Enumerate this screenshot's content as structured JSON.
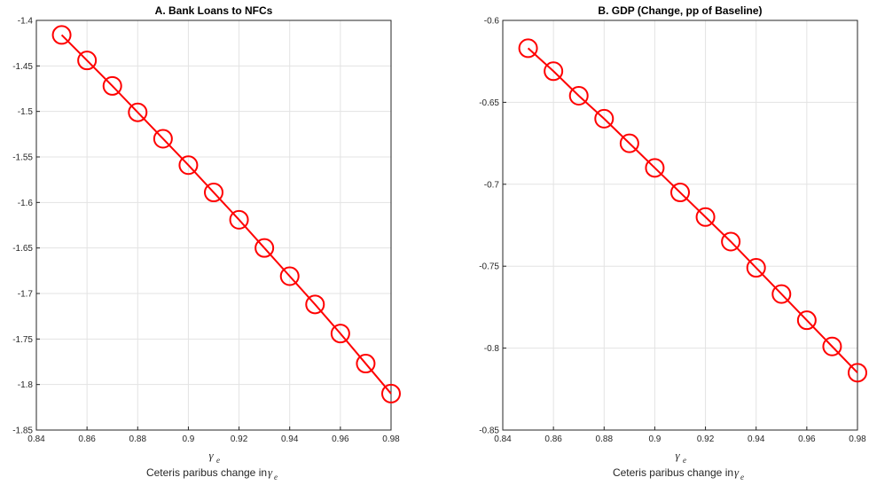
{
  "chart_data": [
    {
      "type": "line",
      "title": "A. Bank Loans to NFCs",
      "xlabel": "γe",
      "xlabel_parts": {
        "symbol": "γ",
        "sub": "e"
      },
      "caption": "Ceteris paribus change in γe",
      "caption_parts": {
        "text": "Ceteris paribus change in ",
        "symbol": "γ",
        "sub": "e"
      },
      "xlim": [
        0.84,
        0.98
      ],
      "ylim": [
        -1.85,
        -1.4
      ],
      "xticks": [
        0.84,
        0.86,
        0.88,
        0.9,
        0.92,
        0.94,
        0.96,
        0.98
      ],
      "xtick_labels": [
        "0.84",
        "0.86",
        "0.88",
        "0.9",
        "0.92",
        "0.94",
        "0.96",
        "0.98"
      ],
      "yticks": [
        -1.4,
        -1.45,
        -1.5,
        -1.55,
        -1.6,
        -1.65,
        -1.7,
        -1.75,
        -1.8,
        -1.85
      ],
      "ytick_labels": [
        "-1.4",
        "-1.45",
        "-1.5",
        "-1.55",
        "-1.6",
        "-1.65",
        "-1.7",
        "-1.75",
        "-1.8",
        "-1.85"
      ],
      "grid": true,
      "line_color": "#ff0000",
      "marker": "circle",
      "x": [
        0.85,
        0.86,
        0.87,
        0.88,
        0.89,
        0.9,
        0.91,
        0.92,
        0.93,
        0.94,
        0.95,
        0.96,
        0.97,
        0.98
      ],
      "y": [
        -1.416,
        -1.444,
        -1.472,
        -1.501,
        -1.53,
        -1.559,
        -1.589,
        -1.619,
        -1.65,
        -1.681,
        -1.712,
        -1.744,
        -1.777,
        -1.81
      ]
    },
    {
      "type": "line",
      "title": "B. GDP (Change, pp of Baseline)",
      "xlabel": "γe",
      "xlabel_parts": {
        "symbol": "γ",
        "sub": "e"
      },
      "caption": "Ceteris paribus change in γe",
      "caption_parts": {
        "text": "Ceteris paribus change in ",
        "symbol": "γ",
        "sub": "e"
      },
      "xlim": [
        0.84,
        0.98
      ],
      "ylim": [
        -0.85,
        -0.6
      ],
      "xticks": [
        0.84,
        0.86,
        0.88,
        0.9,
        0.92,
        0.94,
        0.96,
        0.98
      ],
      "xtick_labels": [
        "0.84",
        "0.86",
        "0.88",
        "0.9",
        "0.92",
        "0.94",
        "0.96",
        "0.98"
      ],
      "yticks": [
        -0.6,
        -0.65,
        -0.7,
        -0.75,
        -0.8,
        -0.85
      ],
      "ytick_labels": [
        "-0.6",
        "-0.65",
        "-0.7",
        "-0.75",
        "-0.8",
        "-0.85"
      ],
      "grid": true,
      "line_color": "#ff0000",
      "marker": "circle",
      "x": [
        0.85,
        0.86,
        0.87,
        0.88,
        0.89,
        0.9,
        0.91,
        0.92,
        0.93,
        0.94,
        0.95,
        0.96,
        0.97,
        0.98
      ],
      "y": [
        -0.617,
        -0.631,
        -0.646,
        -0.66,
        -0.675,
        -0.69,
        -0.705,
        -0.72,
        -0.735,
        -0.751,
        -0.767,
        -0.783,
        -0.799,
        -0.815
      ]
    }
  ]
}
